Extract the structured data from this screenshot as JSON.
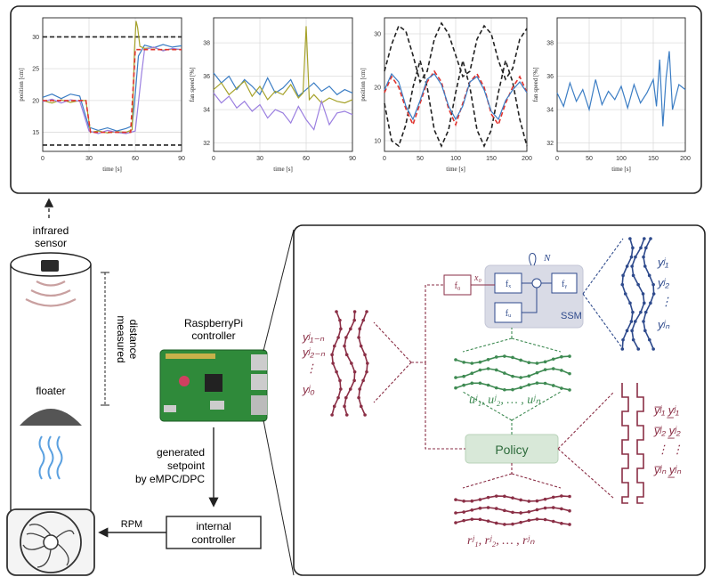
{
  "colors": {
    "blue": "#3b7dc4",
    "olive": "#a6a22a",
    "purple": "#9b7fe0",
    "red": "#e0332e",
    "dark": "#222222",
    "maroon": "#8a2e45",
    "navy": "#2e4a8c",
    "green": "#3e8a52",
    "policy_fill": "#d8e8d8",
    "ssm_fill": "#d9dbe6"
  },
  "left": {
    "sensor_label_1": "infrared",
    "sensor_label_2": "sensor",
    "measured_1": "measured",
    "measured_2": "distance",
    "floater": "floater",
    "rpi_label_1": "RaspberryPi",
    "rpi_label_2": "controller",
    "setpoint_1": "generated",
    "setpoint_2": "setpoint",
    "setpoint_3": "by eMPC/DPC",
    "internal_1": "internal",
    "internal_2": "controller",
    "rpm": "RPM"
  },
  "diagram": {
    "past_outputs": [
      "yʲ₁₋ₙ",
      "yʲ₂₋ₙ",
      "⋮",
      "yʲ₀"
    ],
    "future_outputs": [
      "yʲ₁",
      "yʲ₂",
      "⋮",
      "yʲₙ"
    ],
    "inputs": "uʲ₁, uʲ₂, … , uʲₙ",
    "refs": "rʲ₁, rʲ₂, … , rʲₙ",
    "bounds": [
      "y̅ʲ₁  y̲ʲ₁",
      "y̅ʲ₂  y̲ʲ₂",
      "⋮      ⋮",
      "y̅ʲₙ  y̲ʲₙ"
    ],
    "policy": "Policy",
    "ssm": "SSM",
    "N": "N",
    "f0": "f₀",
    "x0": "x₀",
    "fx": "fₓ",
    "fy": "fᵧ",
    "fu": "fᵤ"
  },
  "chart_data": [
    {
      "type": "line",
      "xlabel": "time [s]",
      "ylabel": "position [cm]",
      "xlim": [
        0,
        90
      ],
      "ylim": [
        12,
        33
      ],
      "xticks": [
        "0",
        "30",
        "60",
        "90"
      ],
      "yticks": [
        "15",
        "20",
        "25",
        "30"
      ],
      "series": [
        {
          "color": "#222222",
          "dashed": true,
          "x": [
            0,
            90
          ],
          "y": [
            30,
            30
          ]
        },
        {
          "color": "#222222",
          "dashed": true,
          "x": [
            0,
            90
          ],
          "y": [
            13,
            13
          ]
        },
        {
          "color": "#3b7dc4",
          "x": [
            0,
            6,
            12,
            18,
            24,
            30,
            36,
            42,
            48,
            54,
            58,
            60,
            62,
            66,
            72,
            78,
            84,
            90
          ],
          "y": [
            20.5,
            21,
            20.3,
            21,
            20.7,
            15.8,
            15.3,
            15.7,
            15.2,
            15.6,
            16,
            21,
            27,
            28.7,
            28.3,
            28.8,
            28.4,
            28.6
          ]
        },
        {
          "color": "#a6a22a",
          "x": [
            0,
            6,
            12,
            18,
            24,
            28,
            31,
            36,
            42,
            48,
            54,
            58,
            59.5,
            60.5,
            61.5,
            63,
            66,
            72,
            78,
            84,
            90
          ],
          "y": [
            20,
            19.6,
            20.1,
            19.7,
            20,
            20,
            15,
            15.2,
            14.9,
            15.1,
            15,
            15.4,
            28,
            32.5,
            31.5,
            28.5,
            28.2,
            28.3,
            27.9,
            28.1,
            28
          ]
        },
        {
          "color": "#9b7fe0",
          "x": [
            0,
            6,
            12,
            18,
            24,
            30,
            36,
            42,
            48,
            54,
            60,
            64,
            66,
            72,
            78,
            84,
            90
          ],
          "y": [
            19.8,
            20.2,
            19.6,
            20.1,
            19.9,
            15.2,
            14.8,
            15.3,
            15,
            14.8,
            15.2,
            24,
            28,
            28.4,
            27.8,
            28.2,
            28
          ]
        },
        {
          "color": "#e0332e",
          "dashed": true,
          "x": [
            0,
            28,
            31,
            57,
            60,
            90
          ],
          "y": [
            20,
            20,
            15,
            15,
            28,
            28
          ]
        }
      ]
    },
    {
      "type": "line",
      "xlabel": "time [s]",
      "ylabel": "fan speed [%]",
      "xlim": [
        0,
        90
      ],
      "ylim": [
        31.5,
        39.5
      ],
      "xticks": [
        "0",
        "30",
        "60",
        "90"
      ],
      "yticks": [
        "32",
        "34",
        "36",
        "38"
      ],
      "series": [
        {
          "color": "#3b7dc4",
          "x": [
            0,
            5,
            10,
            15,
            20,
            25,
            30,
            35,
            40,
            45,
            50,
            55,
            60,
            65,
            70,
            75,
            80,
            85,
            90
          ],
          "y": [
            36.2,
            35.6,
            36,
            35.2,
            35.8,
            35.4,
            34.9,
            35.9,
            35,
            35.3,
            35.8,
            34.8,
            35.2,
            35.6,
            35.1,
            35.4,
            34.9,
            35.2,
            35
          ]
        },
        {
          "color": "#a6a22a",
          "x": [
            0,
            5,
            10,
            15,
            20,
            25,
            30,
            35,
            40,
            45,
            50,
            55,
            58,
            60,
            62,
            65,
            70,
            75,
            80,
            85,
            90
          ],
          "y": [
            35.2,
            35.6,
            34.9,
            35.3,
            35.7,
            34.8,
            35.4,
            34.6,
            35.1,
            34.9,
            35.5,
            34.7,
            35,
            39,
            34.6,
            34.9,
            34.4,
            34.7,
            34.5,
            34.4,
            34.6
          ]
        },
        {
          "color": "#9b7fe0",
          "x": [
            0,
            5,
            10,
            15,
            20,
            25,
            30,
            35,
            40,
            45,
            50,
            55,
            60,
            65,
            70,
            75,
            80,
            85,
            90
          ],
          "y": [
            35,
            34.4,
            34.8,
            34.1,
            34.5,
            33.9,
            34.3,
            33.5,
            34,
            33.8,
            33.2,
            34.2,
            33.4,
            32.8,
            34.5,
            33.1,
            33.8,
            33.9,
            33.7
          ]
        }
      ]
    },
    {
      "type": "line",
      "xlabel": "time [s]",
      "ylabel": "position [cm]",
      "xlim": [
        0,
        200
      ],
      "ylim": [
        8,
        33
      ],
      "xticks": [
        "0",
        "50",
        "100",
        "150",
        "200"
      ],
      "yticks": [
        "10",
        "20",
        "30"
      ],
      "series": [
        {
          "color": "#222222",
          "dashed": true,
          "x": [
            0,
            10,
            20,
            30,
            40,
            50,
            60,
            70,
            80,
            90,
            100,
            110,
            120,
            130,
            140,
            150,
            160,
            170,
            180,
            190,
            200
          ],
          "y": [
            23,
            28,
            31.5,
            30.5,
            26,
            21,
            23,
            29,
            32,
            30,
            26,
            22,
            23,
            29,
            31.5,
            30,
            25,
            21.5,
            23.5,
            29,
            31
          ]
        },
        {
          "color": "#222222",
          "dashed": true,
          "x": [
            0,
            10,
            20,
            30,
            40,
            50,
            60,
            70,
            80,
            90,
            100,
            110,
            120,
            130,
            140,
            150,
            160,
            170,
            180,
            190,
            200
          ],
          "y": [
            17,
            10,
            9,
            13,
            20,
            25,
            20,
            12,
            9,
            12,
            19,
            25,
            20,
            12,
            9,
            12,
            19,
            25,
            21,
            14,
            9
          ]
        },
        {
          "color": "#e0332e",
          "dashed": true,
          "x": [
            0,
            10,
            20,
            30,
            40,
            50,
            60,
            70,
            80,
            90,
            100,
            110,
            120,
            130,
            140,
            150,
            160,
            170,
            180,
            190,
            200
          ],
          "y": [
            19,
            22,
            20,
            16,
            13,
            17,
            21,
            23,
            21,
            16,
            13,
            17,
            21,
            22.5,
            20,
            15,
            13,
            17,
            20,
            22,
            19
          ]
        },
        {
          "color": "#3b7dc4",
          "x": [
            0,
            10,
            20,
            30,
            40,
            50,
            60,
            70,
            80,
            90,
            100,
            110,
            120,
            130,
            140,
            150,
            160,
            170,
            180,
            190,
            200
          ],
          "y": [
            19.5,
            22.5,
            21,
            16.5,
            14,
            17.5,
            21.5,
            22.5,
            20.5,
            16.5,
            14,
            16.5,
            21,
            22,
            19.5,
            15.5,
            14,
            17.5,
            19.5,
            21,
            19
          ]
        }
      ]
    },
    {
      "type": "line",
      "xlabel": "time [s]",
      "ylabel": "fan speed [%]",
      "xlim": [
        0,
        200
      ],
      "ylim": [
        31.5,
        39.5
      ],
      "xticks": [
        "0",
        "50",
        "100",
        "150",
        "200"
      ],
      "yticks": [
        "32",
        "34",
        "36",
        "38"
      ],
      "series": [
        {
          "color": "#3b7dc4",
          "x": [
            0,
            10,
            20,
            30,
            40,
            50,
            60,
            70,
            80,
            90,
            100,
            110,
            120,
            130,
            140,
            150,
            155,
            160,
            165,
            170,
            175,
            180,
            190,
            200
          ],
          "y": [
            35,
            34.2,
            35.6,
            34.5,
            35.2,
            34,
            35.8,
            34.3,
            35.1,
            34.6,
            35.4,
            34.1,
            35.5,
            34.4,
            35,
            35.8,
            34.2,
            37,
            33,
            35.9,
            37.5,
            34,
            35.5,
            35.2
          ]
        }
      ]
    }
  ]
}
